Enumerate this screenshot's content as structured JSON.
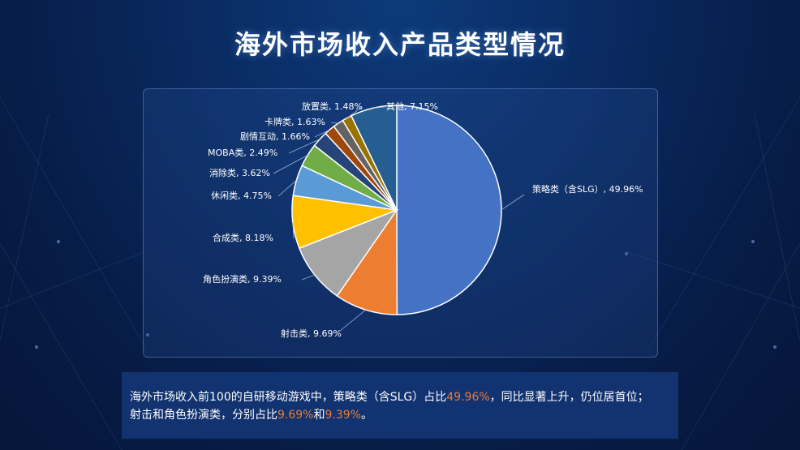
{
  "title": "海外市场收入产品类型情况",
  "chart_data": {
    "type": "pie",
    "title": "",
    "slices": [
      {
        "label": "策略类（含SLG）",
        "value": 49.96,
        "display": "策略类（含SLG）, 49.96%",
        "color": "#4472c4"
      },
      {
        "label": "射击类",
        "value": 9.69,
        "display": "射击类, 9.69%",
        "color": "#ed7d31"
      },
      {
        "label": "角色扮演类",
        "value": 9.39,
        "display": "角色扮演类, 9.39%",
        "color": "#a5a5a5"
      },
      {
        "label": "合成类",
        "value": 8.18,
        "display": "合成类, 8.18%",
        "color": "#ffc000"
      },
      {
        "label": "休闲类",
        "value": 4.75,
        "display": "休闲类, 4.75%",
        "color": "#5b9bd5"
      },
      {
        "label": "消除类",
        "value": 3.62,
        "display": "消除类, 3.62%",
        "color": "#70ad47"
      },
      {
        "label": "MOBA类",
        "value": 2.49,
        "display": "MOBA类, 2.49%",
        "color": "#264478"
      },
      {
        "label": "剧情互动",
        "value": 1.66,
        "display": "剧情互动, 1.66%",
        "color": "#9e480e"
      },
      {
        "label": "卡牌类",
        "value": 1.63,
        "display": "卡牌类, 1.63%",
        "color": "#636363"
      },
      {
        "label": "放置类",
        "value": 1.48,
        "display": "放置类, 1.48%",
        "color": "#997300"
      },
      {
        "label": "其他",
        "value": 7.15,
        "display": "其他, 7.15%",
        "color": "#255e91"
      }
    ]
  },
  "note": {
    "line1_prefix": "海外市场收入前100的自研移动游戏中，策略类（含SLG）占比",
    "line1_hl": "49.96%",
    "line1_suffix": "，同比显著上升，仍位居首位；",
    "line2_prefix": "射击和角色扮演类，分别占比",
    "line2_hl1": "9.69%",
    "line2_mid": "和",
    "line2_hl2": "9.39%",
    "line2_suffix": "。"
  }
}
